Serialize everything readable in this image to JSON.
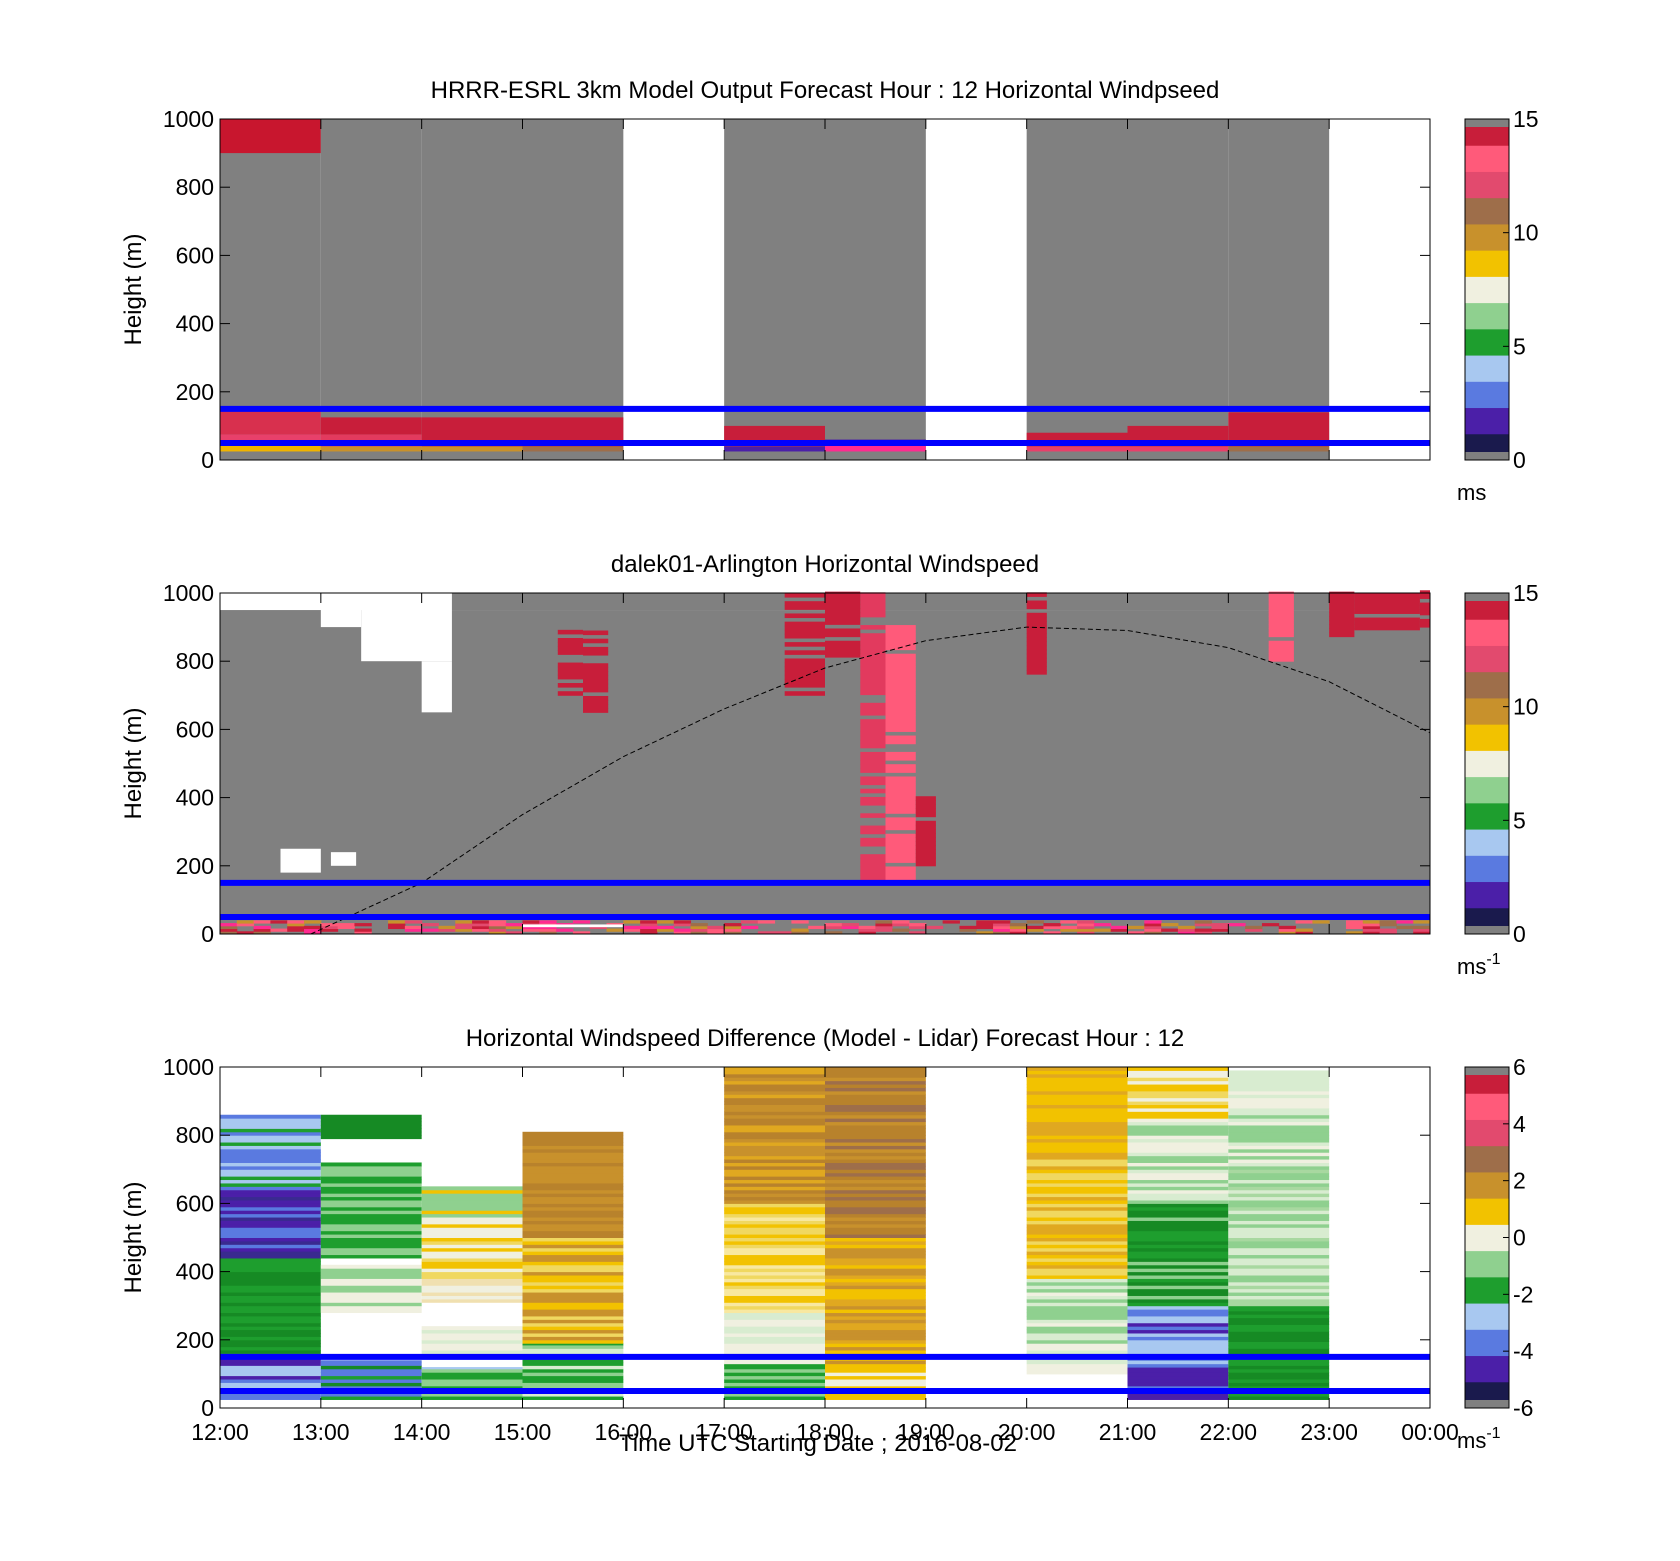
{
  "figure": {
    "xlabel": "Time UTC  Starting Date ; 2016-08-02",
    "x_ticks": [
      "12:00",
      "13:00",
      "14:00",
      "15:00",
      "16:00",
      "17:00",
      "18:00",
      "19:00",
      "20:00",
      "21:00",
      "22:00",
      "23:00",
      "00:00"
    ]
  },
  "chart_data": [
    {
      "type": "heatmap",
      "title": "HRRR-ESRL 3km Model Output   Forecast Hour : 12 Horizontal Windpseed",
      "ylabel": "Height (m)",
      "ylim": [
        0,
        1000
      ],
      "y_ticks": [
        0,
        200,
        400,
        600,
        800,
        1000
      ],
      "xlim_hours": [
        12,
        24
      ],
      "colorbar": {
        "range": [
          0,
          15
        ],
        "ticks": [
          0,
          5,
          10,
          15
        ],
        "unit_base": "ms",
        "unit_exp": "",
        "colors": [
          "#1a1a4d",
          "#4b1fa8",
          "#5a7ae0",
          "#a8c8f0",
          "#1e9e2e",
          "#8fd08f",
          "#f0f0e0",
          "#f2c200",
          "#c8912c",
          "#9e6e4a",
          "#e24a6e",
          "#ff5a7a",
          "#c81e3a"
        ]
      },
      "reference_lines_m": [
        150,
        50
      ],
      "reference_line_color": "#0000ff",
      "no_data_color": "#808080",
      "columns": [
        {
          "start": 12,
          "end": 13,
          "top_block": {
            "from": 900,
            "to": 1000,
            "color": "#c8162e"
          },
          "layers": [
            {
              "from": 25,
              "to": 50,
              "color": "#f0b400"
            },
            {
              "from": 50,
              "to": 75,
              "color": "#e8406a"
            },
            {
              "from": 75,
              "to": 150,
              "color": "#d8304e"
            }
          ],
          "fill_to": 1000
        },
        {
          "start": 13,
          "end": 14,
          "layers": [
            {
              "from": 25,
              "to": 40,
              "color": "#c8912c"
            },
            {
              "from": 40,
              "to": 75,
              "color": "#e23a5e"
            },
            {
              "from": 75,
              "to": 125,
              "color": "#c81e3a"
            }
          ],
          "fill_to": 1000
        },
        {
          "start": 14,
          "end": 15,
          "layers": [
            {
              "from": 25,
              "to": 40,
              "color": "#c8912c"
            },
            {
              "from": 40,
              "to": 125,
              "color": "#c81e3a"
            }
          ],
          "fill_to": 1000
        },
        {
          "start": 15,
          "end": 16,
          "layers": [
            {
              "from": 25,
              "to": 40,
              "color": "#9e6e4a"
            },
            {
              "from": 40,
              "to": 125,
              "color": "#c81e3a"
            }
          ],
          "fill_to": 1000
        },
        {
          "start": 17,
          "end": 18,
          "layers": [
            {
              "from": 25,
              "to": 40,
              "color": "#4b1fa8"
            },
            {
              "from": 40,
              "to": 100,
              "color": "#c81e3a"
            }
          ],
          "fill_to": 1000
        },
        {
          "start": 18,
          "end": 19,
          "layers": [
            {
              "from": 25,
              "to": 50,
              "color": "#ff2a90"
            },
            {
              "from": 50,
              "to": 60,
              "color": "#4b1fa8"
            }
          ],
          "fill_to": 1000
        },
        {
          "start": 20,
          "end": 21,
          "layers": [
            {
              "from": 25,
              "to": 40,
              "color": "#e8406a"
            },
            {
              "from": 40,
              "to": 80,
              "color": "#c81e3a"
            }
          ],
          "fill_to": 1000
        },
        {
          "start": 21,
          "end": 22,
          "layers": [
            {
              "from": 25,
              "to": 40,
              "color": "#e8406a"
            },
            {
              "from": 40,
              "to": 100,
              "color": "#c81e3a"
            }
          ],
          "fill_to": 1000
        },
        {
          "start": 22,
          "end": 23,
          "layers": [
            {
              "from": 25,
              "to": 40,
              "color": "#9e6e4a"
            },
            {
              "from": 40,
              "to": 140,
              "color": "#c81e3a"
            }
          ],
          "fill_to": 1000
        }
      ]
    },
    {
      "type": "heatmap",
      "title": "dalek01-Arlington  Horizontal Windspeed",
      "ylabel": "Height (m)",
      "ylim": [
        0,
        1000
      ],
      "y_ticks": [
        0,
        200,
        400,
        600,
        800,
        1000
      ],
      "xlim_hours": [
        12,
        24
      ],
      "colorbar": {
        "range": [
          0,
          15
        ],
        "ticks": [
          0,
          5,
          10,
          15
        ],
        "unit_base": "ms",
        "unit_exp": "-1",
        "colors": [
          "#1a1a4d",
          "#4b1fa8",
          "#5a7ae0",
          "#a8c8f0",
          "#1e9e2e",
          "#8fd08f",
          "#f0f0e0",
          "#f2c200",
          "#c8912c",
          "#9e6e4a",
          "#e24a6e",
          "#ff5a7a",
          "#c81e3a"
        ]
      },
      "reference_lines_m": [
        150,
        50
      ],
      "reference_line_color": "#0000ff",
      "no_data_color": "#808080",
      "range_curve": {
        "points_hours_m": [
          [
            12.9,
            0
          ],
          [
            14,
            150
          ],
          [
            15,
            350
          ],
          [
            16,
            520
          ],
          [
            17,
            660
          ],
          [
            18,
            780
          ],
          [
            19,
            860
          ],
          [
            20,
            900
          ],
          [
            21,
            890
          ],
          [
            22,
            840
          ],
          [
            23,
            740
          ],
          [
            24,
            590
          ]
        ]
      },
      "high_wind_patches": [
        {
          "start": 18.35,
          "end": 18.6,
          "from": 150,
          "to": 1000,
          "color": "#e23a5e"
        },
        {
          "start": 18.6,
          "end": 18.9,
          "from": 150,
          "to": 900,
          "color": "#ff5a7a"
        },
        {
          "start": 18.9,
          "end": 19.1,
          "from": 200,
          "to": 400,
          "color": "#c81e3a"
        },
        {
          "start": 22.4,
          "end": 22.65,
          "from": 800,
          "to": 1000,
          "color": "#ff5a7a"
        },
        {
          "start": 23.0,
          "end": 23.25,
          "from": 860,
          "to": 1000,
          "color": "#c81e3a"
        },
        {
          "start": 23.25,
          "end": 23.9,
          "from": 880,
          "to": 1000,
          "color": "#c81e3a"
        },
        {
          "start": 23.9,
          "end": 24.0,
          "from": 900,
          "to": 1000,
          "color": "#c81e3a"
        },
        {
          "start": 17.6,
          "end": 18.0,
          "from": 700,
          "to": 1000,
          "color": "#c81e3a"
        },
        {
          "start": 18.0,
          "end": 18.35,
          "from": 800,
          "to": 1000,
          "color": "#c81e3a"
        },
        {
          "start": 20.0,
          "end": 20.2,
          "from": 750,
          "to": 1000,
          "color": "#c81e3a"
        },
        {
          "start": 15.35,
          "end": 15.6,
          "from": 700,
          "to": 900,
          "color": "#c81e3a"
        },
        {
          "start": 15.6,
          "end": 15.85,
          "from": 650,
          "to": 900,
          "color": "#c81e3a"
        }
      ],
      "no_return_patches": [
        {
          "start": 12.6,
          "end": 13.0,
          "from": 180,
          "to": 250
        },
        {
          "start": 13.1,
          "end": 13.35,
          "from": 200,
          "to": 240
        },
        {
          "start": 13.4,
          "end": 14.3,
          "from": 800,
          "to": 1000
        },
        {
          "start": 14.0,
          "end": 14.3,
          "from": 650,
          "to": 800
        },
        {
          "start": 13.0,
          "end": 13.4,
          "from": 900,
          "to": 1000
        },
        {
          "start": 15.0,
          "end": 16.0,
          "from": 20,
          "to": 28
        }
      ]
    },
    {
      "type": "heatmap",
      "title": "Horizontal Windspeed Difference (Model - Lidar) Forecast Hour : 12",
      "ylabel": "Height (m)",
      "ylim": [
        0,
        1000
      ],
      "y_ticks": [
        0,
        200,
        400,
        600,
        800,
        1000
      ],
      "xlim_hours": [
        12,
        24
      ],
      "colorbar": {
        "range": [
          -6,
          6
        ],
        "ticks": [
          -6,
          -4,
          -2,
          0,
          2,
          4,
          6
        ],
        "unit_base": "ms",
        "unit_exp": "-1",
        "colors": [
          "#1a1a4d",
          "#4b1fa8",
          "#5a7ae0",
          "#a8c8f0",
          "#1e9e2e",
          "#8fd08f",
          "#f0f0e0",
          "#f2c200",
          "#c8912c",
          "#9e6e4a",
          "#e24a6e",
          "#ff5a7a",
          "#c81e3a"
        ]
      },
      "reference_lines_m": [
        150,
        50
      ],
      "reference_line_color": "#0000ff",
      "columns": [
        {
          "start": 12,
          "end": 13,
          "segments": [
            {
              "from": 25,
              "to": 160,
              "colors": [
                "#5a7ae0",
                "#a8c8f0",
                "#4b1fa8"
              ]
            },
            {
              "from": 160,
              "to": 440,
              "colors": [
                "#1e9e2e",
                "#168a24"
              ]
            },
            {
              "from": 440,
              "to": 640,
              "colors": [
                "#4b1fa8",
                "#5a7ae0",
                "#3a2a90"
              ]
            },
            {
              "from": 640,
              "to": 860,
              "colors": [
                "#5a7ae0",
                "#a8c8f0",
                "#1e9e2e"
              ]
            }
          ]
        },
        {
          "start": 13,
          "end": 14,
          "segments": [
            {
              "from": 25,
              "to": 140,
              "colors": [
                "#5a7ae0",
                "#1e9e2e",
                "#168a24"
              ]
            },
            {
              "from": 280,
              "to": 420,
              "colors": [
                "#8fd08f",
                "#f0f0e0"
              ]
            },
            {
              "from": 440,
              "to": 720,
              "colors": [
                "#1e9e2e",
                "#8fd08f"
              ]
            },
            {
              "from": 790,
              "to": 860,
              "colors": [
                "#168a24"
              ]
            }
          ]
        },
        {
          "start": 14,
          "end": 15,
          "segments": [
            {
              "from": 25,
              "to": 120,
              "colors": [
                "#8fd08f",
                "#a8c8f0",
                "#1e9e2e"
              ]
            },
            {
              "from": 160,
              "to": 240,
              "colors": [
                "#d8ecd0",
                "#f0f0e0"
              ]
            },
            {
              "from": 310,
              "to": 380,
              "colors": [
                "#f0e0b0",
                "#f0f0e0"
              ]
            },
            {
              "from": 380,
              "to": 560,
              "colors": [
                "#f2c200",
                "#f0d860",
                "#f0f0e0"
              ]
            },
            {
              "from": 560,
              "to": 650,
              "colors": [
                "#f2c200",
                "#8fd08f"
              ]
            }
          ]
        },
        {
          "start": 15,
          "end": 16,
          "segments": [
            {
              "from": 25,
              "to": 190,
              "colors": [
                "#1e9e2e",
                "#8fd08f",
                "#d8ecd0"
              ]
            },
            {
              "from": 190,
              "to": 500,
              "colors": [
                "#f2c200",
                "#f0d860",
                "#c8912c"
              ]
            },
            {
              "from": 500,
              "to": 810,
              "colors": [
                "#c8912c",
                "#b8822c"
              ]
            }
          ]
        },
        {
          "start": 17,
          "end": 18,
          "segments": [
            {
              "from": 25,
              "to": 130,
              "colors": [
                "#1e9e2e",
                "#8fd08f"
              ]
            },
            {
              "from": 130,
              "to": 280,
              "colors": [
                "#d8ecd0",
                "#f0f0e0"
              ]
            },
            {
              "from": 280,
              "to": 600,
              "colors": [
                "#f2c200",
                "#f0d860",
                "#f8e8a0"
              ]
            },
            {
              "from": 600,
              "to": 1000,
              "colors": [
                "#c8912c",
                "#b8822c",
                "#e0a820"
              ]
            }
          ]
        },
        {
          "start": 18,
          "end": 19,
          "segments": [
            {
              "from": 25,
              "to": 120,
              "colors": [
                "#f0f0e0",
                "#f2c200"
              ]
            },
            {
              "from": 120,
              "to": 500,
              "colors": [
                "#e0a820",
                "#c8912c",
                "#f2c200"
              ]
            },
            {
              "from": 500,
              "to": 1000,
              "colors": [
                "#9e6e4a",
                "#b8822c",
                "#c8912c"
              ]
            }
          ]
        },
        {
          "start": 20,
          "end": 21,
          "segments": [
            {
              "from": 100,
              "to": 380,
              "colors": [
                "#8fd08f",
                "#d8ecd0",
                "#f0f0e0"
              ]
            },
            {
              "from": 380,
              "to": 800,
              "colors": [
                "#f2c200",
                "#f0d860",
                "#e0a820"
              ]
            },
            {
              "from": 800,
              "to": 1000,
              "colors": [
                "#e0a820",
                "#f2c200"
              ]
            }
          ]
        },
        {
          "start": 21,
          "end": 22,
          "segments": [
            {
              "from": 25,
              "to": 120,
              "colors": [
                "#5a7ae0",
                "#4b1fa8"
              ]
            },
            {
              "from": 120,
              "to": 300,
              "colors": [
                "#5a7ae0",
                "#a8c8f0",
                "#4b1fa8"
              ]
            },
            {
              "from": 300,
              "to": 600,
              "colors": [
                "#168a24",
                "#1e9e2e",
                "#8fd08f"
              ]
            },
            {
              "from": 600,
              "to": 850,
              "colors": [
                "#d8ecd0",
                "#f0f0e0",
                "#8fd08f"
              ]
            },
            {
              "from": 850,
              "to": 1000,
              "colors": [
                "#f2c200",
                "#f0d860",
                "#f0f0e0"
              ]
            }
          ]
        },
        {
          "start": 22,
          "end": 23,
          "segments": [
            {
              "from": 25,
              "to": 300,
              "colors": [
                "#168a24",
                "#1e9e2e"
              ]
            },
            {
              "from": 300,
              "to": 700,
              "colors": [
                "#8fd08f",
                "#a8d8a0",
                "#d8ecd0"
              ]
            },
            {
              "from": 700,
              "to": 990,
              "colors": [
                "#d8ecd0",
                "#f0f0e0",
                "#8fd08f"
              ]
            }
          ]
        }
      ]
    }
  ]
}
